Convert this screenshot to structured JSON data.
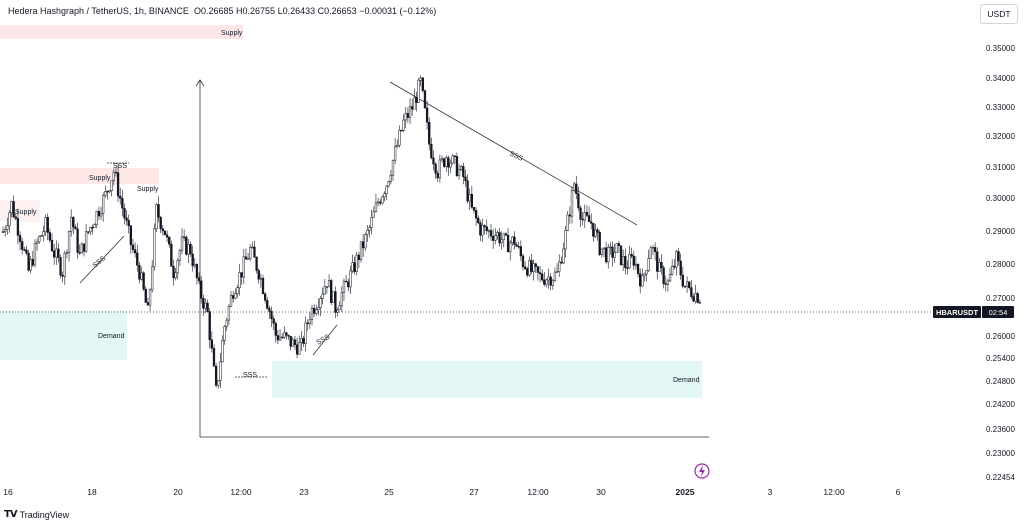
{
  "header": {
    "symbol_line": "Hedera Hashgraph / TetherUS, 1h, BINANCE",
    "open": "O0.26685",
    "high": "H0.26755",
    "low": "L0.26433",
    "close": "C0.26653",
    "change": "−0.00031 (−0.12%)",
    "currency_label": "USDT"
  },
  "branding": {
    "logo_text": "TV",
    "label": "TradingView"
  },
  "price_tag": {
    "symbol": "HBARUSDT",
    "countdown": "02:54"
  },
  "colors": {
    "candle": "#131722",
    "supply": "#fde7e7",
    "demand": "#e3f7f7",
    "trendline": "#333333",
    "grid": "#f0f3fa",
    "alert_icon": "#9c27b0"
  },
  "annotations": {
    "supply": "Supply",
    "demand": "Demand",
    "sss": "SSS"
  },
  "chart_data": {
    "type": "candlestick",
    "x_ticks": [
      "16",
      "18",
      "20",
      "12:00",
      "23",
      "25",
      "27",
      "12:00",
      "30",
      "2025",
      "3",
      "12:00",
      "6"
    ],
    "y_ticks": [
      "0.35000",
      "0.34000",
      "0.33000",
      "0.32000",
      "0.31000",
      "0.30000",
      "0.29000",
      "0.28000",
      "0.27000",
      "0.26000",
      "0.25400",
      "0.24800",
      "0.24200",
      "0.23600",
      "0.23000",
      "0.22454"
    ],
    "last_price": 0.26653,
    "series_close_path": [
      0.289,
      0.298,
      0.288,
      0.276,
      0.285,
      0.291,
      0.282,
      0.276,
      0.294,
      0.281,
      0.289,
      0.295,
      0.301,
      0.309,
      0.297,
      0.285,
      0.276,
      0.262,
      0.296,
      0.289,
      0.276,
      0.285,
      0.283,
      0.27,
      0.262,
      0.236,
      0.258,
      0.27,
      0.276,
      0.283,
      0.276,
      0.266,
      0.255,
      0.254,
      0.252,
      0.251,
      0.262,
      0.267,
      0.273,
      0.264,
      0.27,
      0.276,
      0.283,
      0.29,
      0.299,
      0.305,
      0.315,
      0.325,
      0.33,
      0.338,
      0.318,
      0.309,
      0.314,
      0.311,
      0.307,
      0.296,
      0.29,
      0.289,
      0.288,
      0.285,
      0.286,
      0.279,
      0.276,
      0.274,
      0.274,
      0.275,
      0.288,
      0.305,
      0.293,
      0.292,
      0.284,
      0.281,
      0.283,
      0.278,
      0.28,
      0.272,
      0.285,
      0.276,
      0.272,
      0.28,
      0.271,
      0.269,
      0.267
    ]
  }
}
